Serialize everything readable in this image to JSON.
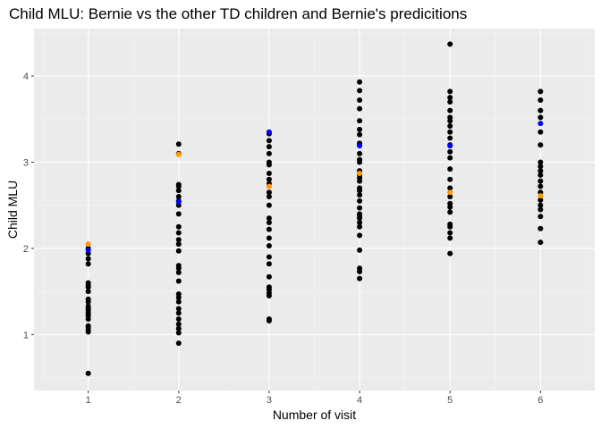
{
  "chart_data": {
    "type": "scatter",
    "title": "Child MLU: Bernie vs the other TD children and Bernie's predicitions",
    "xlabel": "Number of visit",
    "ylabel": "Child MLU",
    "xlim": [
      0.4,
      6.6
    ],
    "ylim": [
      0.35,
      4.55
    ],
    "x_ticks": [
      1,
      2,
      3,
      4,
      5,
      6
    ],
    "y_ticks": [
      1,
      2,
      3,
      4
    ],
    "grid": true,
    "legend": "none",
    "colors": {
      "panel": "#ebebeb",
      "grid_major": "#ffffff",
      "grid_minor": "#f5f5f5",
      "td_children": "#000000",
      "bernie": "#ff9900",
      "prediction": "#0000ff"
    },
    "series": [
      {
        "color_key": "td_children",
        "points": [
          [
            1,
            0.55
          ],
          [
            1,
            1.03
          ],
          [
            1,
            1.06
          ],
          [
            1,
            1.09
          ],
          [
            1,
            1.1
          ],
          [
            1,
            1.18
          ],
          [
            1,
            1.22
          ],
          [
            1,
            1.25
          ],
          [
            1,
            1.28
          ],
          [
            1,
            1.3
          ],
          [
            1,
            1.33
          ],
          [
            1,
            1.38
          ],
          [
            1,
            1.41
          ],
          [
            1,
            1.5
          ],
          [
            1,
            1.55
          ],
          [
            1,
            1.57
          ],
          [
            1,
            1.6
          ],
          [
            1,
            1.82
          ],
          [
            1,
            1.88
          ],
          [
            1,
            1.94
          ],
          [
            1,
            2.0
          ],
          [
            2,
            0.9
          ],
          [
            2,
            1.02
          ],
          [
            2,
            1.07
          ],
          [
            2,
            1.12
          ],
          [
            2,
            1.18
          ],
          [
            2,
            1.25
          ],
          [
            2,
            1.3
          ],
          [
            2,
            1.38
          ],
          [
            2,
            1.43
          ],
          [
            2,
            1.47
          ],
          [
            2,
            1.62
          ],
          [
            2,
            1.72
          ],
          [
            2,
            1.77
          ],
          [
            2,
            1.8
          ],
          [
            2,
            1.97
          ],
          [
            2,
            2.05
          ],
          [
            2,
            2.1
          ],
          [
            2,
            2.18
          ],
          [
            2,
            2.25
          ],
          [
            2,
            2.4
          ],
          [
            2,
            2.5
          ],
          [
            2,
            2.55
          ],
          [
            2,
            2.6
          ],
          [
            2,
            2.67
          ],
          [
            2,
            2.72
          ],
          [
            2,
            2.74
          ],
          [
            2,
            3.1
          ],
          [
            2,
            3.21
          ],
          [
            3,
            1.16
          ],
          [
            3,
            1.18
          ],
          [
            3,
            1.45
          ],
          [
            3,
            1.48
          ],
          [
            3,
            1.52
          ],
          [
            3,
            1.55
          ],
          [
            3,
            1.67
          ],
          [
            3,
            1.82
          ],
          [
            3,
            1.9
          ],
          [
            3,
            2.03
          ],
          [
            3,
            2.12
          ],
          [
            3,
            2.22
          ],
          [
            3,
            2.3
          ],
          [
            3,
            2.35
          ],
          [
            3,
            2.5
          ],
          [
            3,
            2.6
          ],
          [
            3,
            2.65
          ],
          [
            3,
            2.75
          ],
          [
            3,
            2.8
          ],
          [
            3,
            2.87
          ],
          [
            3,
            2.97
          ],
          [
            3,
            3.0
          ],
          [
            3,
            3.1
          ],
          [
            3,
            3.18
          ],
          [
            3,
            3.25
          ],
          [
            3,
            3.33
          ],
          [
            4,
            1.65
          ],
          [
            4,
            1.73
          ],
          [
            4,
            1.77
          ],
          [
            4,
            1.98
          ],
          [
            4,
            2.15
          ],
          [
            4,
            2.25
          ],
          [
            4,
            2.3
          ],
          [
            4,
            2.35
          ],
          [
            4,
            2.38
          ],
          [
            4,
            2.4
          ],
          [
            4,
            2.47
          ],
          [
            4,
            2.55
          ],
          [
            4,
            2.62
          ],
          [
            4,
            2.67
          ],
          [
            4,
            2.7
          ],
          [
            4,
            2.78
          ],
          [
            4,
            2.82
          ],
          [
            4,
            2.85
          ],
          [
            4,
            2.9
          ],
          [
            4,
            3.0
          ],
          [
            4,
            3.03
          ],
          [
            4,
            3.1
          ],
          [
            4,
            3.2
          ],
          [
            4,
            3.22
          ],
          [
            4,
            3.32
          ],
          [
            4,
            3.38
          ],
          [
            4,
            3.48
          ],
          [
            4,
            3.62
          ],
          [
            4,
            3.72
          ],
          [
            4,
            3.83
          ],
          [
            4,
            3.93
          ],
          [
            5,
            1.94
          ],
          [
            5,
            2.12
          ],
          [
            5,
            2.18
          ],
          [
            5,
            2.25
          ],
          [
            5,
            2.28
          ],
          [
            5,
            2.42
          ],
          [
            5,
            2.48
          ],
          [
            5,
            2.52
          ],
          [
            5,
            2.6
          ],
          [
            5,
            2.7
          ],
          [
            5,
            2.8
          ],
          [
            5,
            2.92
          ],
          [
            5,
            3.05
          ],
          [
            5,
            3.12
          ],
          [
            5,
            3.2
          ],
          [
            5,
            3.28
          ],
          [
            5,
            3.35
          ],
          [
            5,
            3.42
          ],
          [
            5,
            3.48
          ],
          [
            5,
            3.52
          ],
          [
            5,
            3.6
          ],
          [
            5,
            3.7
          ],
          [
            5,
            3.75
          ],
          [
            5,
            3.82
          ],
          [
            5,
            4.37
          ],
          [
            6,
            2.07
          ],
          [
            6,
            2.23
          ],
          [
            6,
            2.37
          ],
          [
            6,
            2.45
          ],
          [
            6,
            2.5
          ],
          [
            6,
            2.56
          ],
          [
            6,
            2.65
          ],
          [
            6,
            2.72
          ],
          [
            6,
            2.78
          ],
          [
            6,
            2.85
          ],
          [
            6,
            2.9
          ],
          [
            6,
            2.95
          ],
          [
            6,
            3.0
          ],
          [
            6,
            3.2
          ],
          [
            6,
            3.35
          ],
          [
            6,
            3.52
          ],
          [
            6,
            3.6
          ],
          [
            6,
            3.72
          ],
          [
            6,
            3.82
          ]
        ]
      },
      {
        "color_key": "bernie",
        "points": [
          [
            1,
            2.05
          ],
          [
            2,
            3.09
          ],
          [
            3,
            2.72
          ],
          [
            4,
            2.87
          ],
          [
            5,
            2.65
          ],
          [
            6,
            2.61
          ]
        ]
      },
      {
        "color_key": "prediction",
        "points": [
          [
            1,
            1.98
          ],
          [
            2,
            2.54
          ],
          [
            3,
            3.35
          ],
          [
            4,
            3.19
          ],
          [
            5,
            3.19
          ],
          [
            6,
            3.45
          ]
        ]
      }
    ]
  }
}
